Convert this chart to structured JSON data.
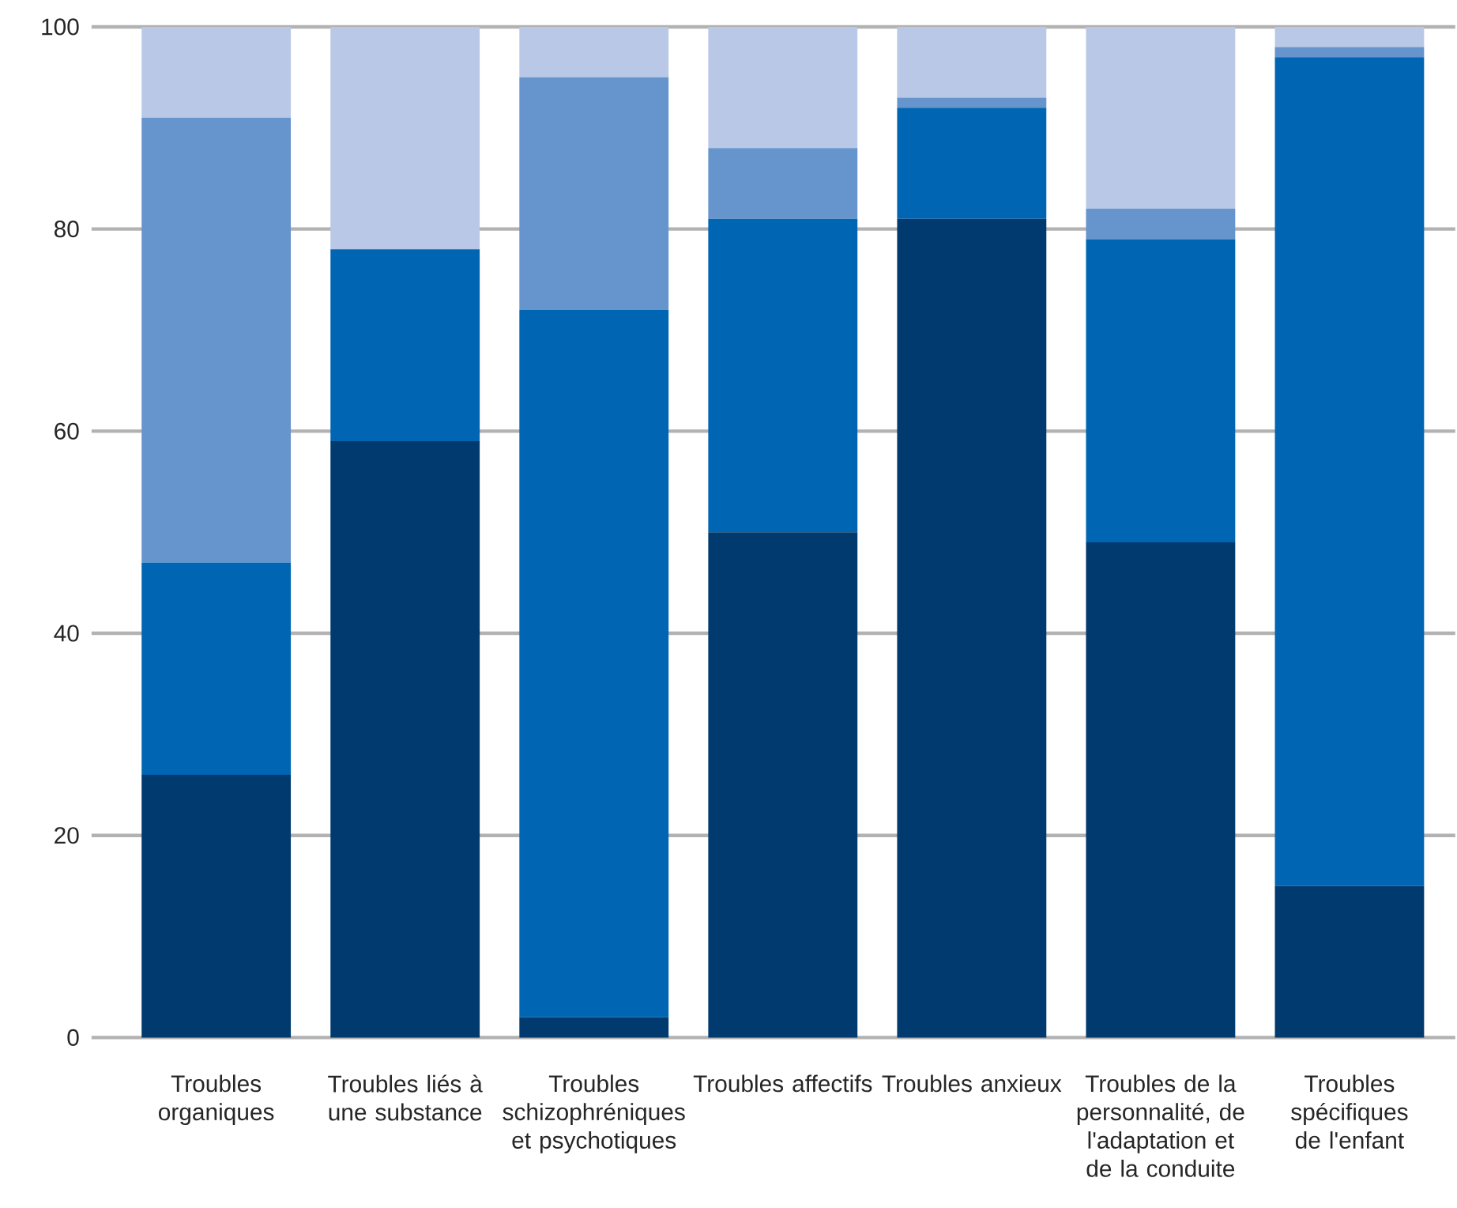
{
  "chart_data": {
    "type": "bar",
    "stacked": true,
    "grid": "y",
    "categories": [
      "Troubles organiques",
      "Troubles liés à une substance",
      "Troubles schizophréniques et psychotiques",
      "Troubles affectifs",
      "Troubles anxieux",
      "Troubles de la personnalité, de l'adaptation et de la conduite",
      "Troubles spécifiques de l'enfant"
    ],
    "series": [
      {
        "color": "#003a6e",
        "values": [
          26,
          59,
          2,
          50,
          81,
          49,
          15
        ]
      },
      {
        "color": "#0066b3",
        "values": [
          21,
          19,
          70,
          31,
          11,
          30,
          82
        ]
      },
      {
        "color": "#6694cc",
        "values": [
          44,
          0,
          23,
          7,
          1,
          3,
          1
        ]
      },
      {
        "color": "#b8c8e6",
        "values": [
          9,
          22,
          5,
          12,
          7,
          18,
          2
        ]
      }
    ],
    "ylim": [
      0,
      100
    ],
    "yticks": [
      0,
      20,
      40,
      60,
      80,
      100
    ]
  }
}
